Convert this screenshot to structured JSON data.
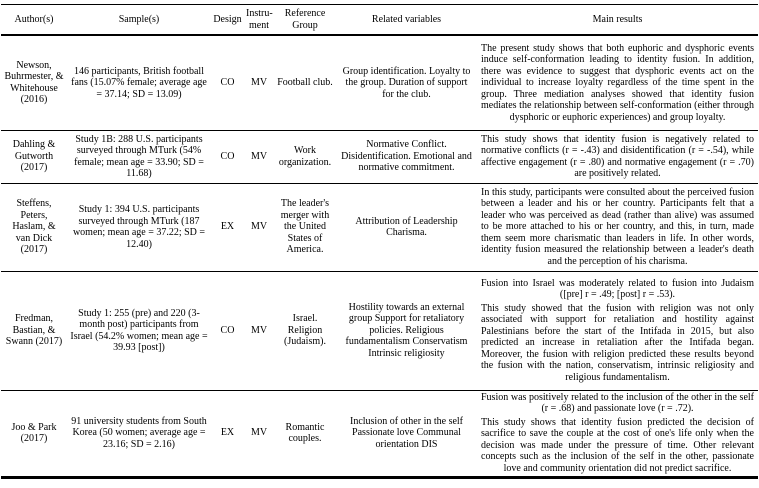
{
  "table": {
    "headers": [
      "Author(s)",
      "Sample(s)",
      "Design",
      "Instru-ment",
      "Reference Group",
      "Related variables",
      "Main results"
    ],
    "rows": [
      {
        "authors": "Newson, Buhrmester, & Whitehouse (2016)",
        "sample": "146 participants, British football fans (15.07% female; average age = 37.14; SD = 13.09)",
        "design": "CO",
        "instrument": "MV",
        "reference_group": "Football club.",
        "related_variables": "Group identification. Loyalty to the group. Duration of support for the club.",
        "main_results": [
          "The present study shows that both euphoric and dysphoric events induce self-conformation leading to identity fusion. In addition, there was evidence to suggest that dysphoric events act on the individual to increase loyalty regardless of the time spent in the group. Three mediation analyses showed that identity fusion mediates the relationship between self-conformation (either through dysphoric or euphoric experiences) and group loyalty."
        ]
      },
      {
        "authors": "Dahling & Gutworth (2017)",
        "sample": "Study 1B: 288 U.S. participants surveyed through MTurk (54% female; mean age = 33.90; SD = 11.68)",
        "design": "CO",
        "instrument": "MV",
        "reference_group": "Work organization.",
        "related_variables": "Normative Conflict. Disidentification. Emotional and normative commitment.",
        "main_results": [
          "This study shows that identity fusion is negatively related to normative conflicts (r = -.43) and disidentification (r = -.54), while affective engagement (r = .80) and normative engagement (r = .70) are positively related."
        ]
      },
      {
        "authors": "Steffens, Peters, Haslam, & van Dick (2017)",
        "sample": "Study 1: 394 U.S. participants surveyed through MTurk (187 women; mean age = 37.22; SD = 12.40)",
        "design": "EX",
        "instrument": "MV",
        "reference_group": "The leader's merger with the United States of America.",
        "related_variables": "Attribution of Leadership Charisma.",
        "main_results": [
          "In this study, participants were consulted about the perceived fusion between a leader and his or her country. Participants felt that a leader who was perceived as dead (rather than alive) was assumed to be more attached to his or her country, and this, in turn, made them seem more charismatic than leaders in life. In other words, identity fusion measured the relationship between a leader's death and the perception of his charisma."
        ]
      },
      {
        "authors": "Fredman, Bastian, & Swann (2017)",
        "sample": "Study 1: 255 (pre) and 220 (3-month post) participants from Israel (54.2% women; mean age = 39.93 [post])",
        "design": "CO",
        "instrument": "MV",
        "reference_group": "Israel. Religion (Judaism).",
        "related_variables": "Hostility towards an external group Support for retaliatory policies. Religious fundamentalism Conservatism Intrinsic religiosity",
        "main_results": [
          "Fusion into Israel was moderately related to fusion into Judaism ([pre] r = .49; [post] r = .53).",
          "This study showed that the fusion with religion was not only associated with support for retaliation and hostility against Palestinians before the start of the Intifada in 2015, but also predicted an increase in retaliation after the Intifada began. Moreover, the fusion with religion predicted these results beyond the fusion with the nation, conservatism, intrinsic religiosity and religious fundamentalism."
        ]
      },
      {
        "authors": "Joo & Park (2017)",
        "sample": "91 university students from South Korea (50 women; average age = 23.16; SD = 2.16)",
        "design": "EX",
        "instrument": "MV",
        "reference_group": "Romantic couples.",
        "related_variables": "Inclusion of other in the self Passionate love Communal orientation DIS",
        "main_results": [
          "Fusion was positively related to the inclusion of the other in the self (r = .68) and passionate love (r = .72).",
          "This study shows that identity fusion predicted the decision of sacrifice to save the couple at the cost of one's life only when the decision was made under the pressure of time. Other relevant concepts such as the inclusion of the self in the other, passionate love and community orientation did not predict sacrifice."
        ]
      }
    ]
  }
}
